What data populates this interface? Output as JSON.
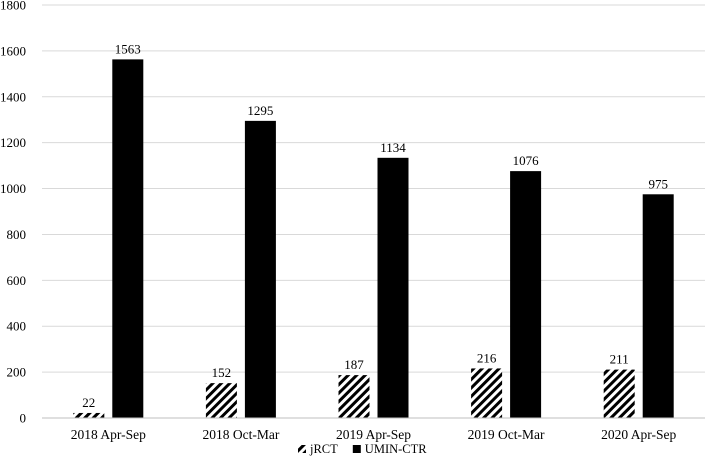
{
  "chart_data": {
    "type": "bar",
    "title": "",
    "xlabel": "",
    "ylabel": "",
    "categories": [
      "2018 Apr-Sep",
      "2018 Oct-Mar",
      "2019 Apr-Sep",
      "2019 Oct-Mar",
      "2020 Apr-Sep"
    ],
    "series": [
      {
        "name": "jRCT",
        "values": [
          22,
          152,
          187,
          216,
          211
        ],
        "fill": "hatched",
        "color": "#000000"
      },
      {
        "name": "UMIN-CTR",
        "values": [
          1563,
          1295,
          1134,
          1076,
          975
        ],
        "fill": "solid",
        "color": "#000000"
      }
    ],
    "ylim": [
      0,
      1800
    ],
    "yticks": [
      0,
      200,
      400,
      600,
      800,
      1000,
      1200,
      1400,
      1600,
      1800
    ],
    "grid": true,
    "legend_position": "bottom",
    "data_labels": true
  }
}
